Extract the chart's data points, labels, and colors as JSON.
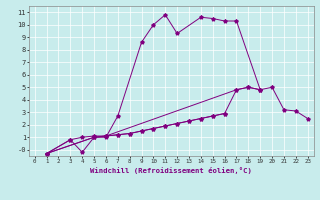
{
  "xlabel": "Windchill (Refroidissement éolien,°C)",
  "background_color": "#c8ecec",
  "line_color": "#800080",
  "xlim": [
    -0.5,
    23.5
  ],
  "ylim": [
    -0.5,
    11.5
  ],
  "xticks": [
    0,
    1,
    2,
    3,
    4,
    5,
    6,
    7,
    8,
    9,
    10,
    11,
    12,
    13,
    14,
    15,
    16,
    17,
    18,
    19,
    20,
    21,
    22,
    23
  ],
  "yticks": [
    0,
    1,
    2,
    3,
    4,
    5,
    6,
    7,
    8,
    9,
    10,
    11
  ],
  "series": [
    {
      "x": [
        1,
        3,
        4,
        5,
        6,
        7,
        9,
        10,
        11,
        12,
        14,
        15,
        16,
        17,
        19,
        20,
        21,
        22,
        23
      ],
      "y": [
        -0.3,
        0.8,
        -0.2,
        1.0,
        1.0,
        2.7,
        8.6,
        10.0,
        10.8,
        9.3,
        10.6,
        10.5,
        10.3,
        10.3,
        4.8,
        5.0,
        3.2,
        3.1,
        2.5
      ]
    },
    {
      "x": [
        1,
        3,
        4,
        5,
        6,
        17,
        18,
        19
      ],
      "y": [
        -0.3,
        0.8,
        1.0,
        1.1,
        1.1,
        4.8,
        5.0,
        4.8
      ]
    },
    {
      "x": [
        1,
        5,
        6,
        7,
        8,
        9,
        10,
        11,
        12,
        13,
        14,
        15,
        16,
        17,
        18,
        19
      ],
      "y": [
        -0.3,
        1.0,
        1.1,
        1.2,
        1.3,
        1.5,
        1.7,
        1.9,
        2.1,
        2.3,
        2.5,
        2.7,
        2.9,
        4.8,
        5.0,
        4.8
      ]
    },
    {
      "x": [
        1,
        5,
        6,
        7,
        8,
        9,
        10,
        11,
        12,
        13,
        14,
        15,
        16
      ],
      "y": [
        -0.3,
        1.0,
        1.1,
        1.2,
        1.3,
        1.5,
        1.7,
        1.9,
        2.1,
        2.3,
        2.5,
        2.7,
        2.9
      ]
    }
  ],
  "ylabel_ytick_minus0": "-0"
}
